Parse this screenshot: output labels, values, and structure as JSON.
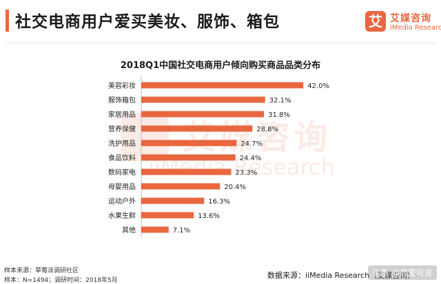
{
  "header": {
    "title": "社交电商用户爱买美妆、服饰、箱包",
    "logo_mark": "艾",
    "logo_cn": "艾媒咨询",
    "logo_en": "iMedia Research",
    "accent_color": "#e8673f"
  },
  "watermark": {
    "cn": "艾媒咨询",
    "en": "iiMedia Research"
  },
  "chart_data": {
    "type": "bar",
    "orientation": "horizontal",
    "title": "2018Q1中国社交电商用户倾向购买商品品类分布",
    "categories": [
      "美容彩妆",
      "服饰箱包",
      "家居用品",
      "营养保健",
      "洗护用品",
      "食品饮料",
      "数码家电",
      "母婴用品",
      "运动户外",
      "水果生鲜",
      "其他"
    ],
    "values": [
      42.0,
      32.1,
      31.8,
      28.8,
      24.7,
      24.4,
      23.3,
      20.4,
      16.3,
      13.6,
      7.1
    ],
    "value_labels": [
      "42.0%",
      "32.1%",
      "31.8%",
      "28.8%",
      "24.7%",
      "24.4%",
      "23.3%",
      "20.4%",
      "16.3%",
      "13.6%",
      "7.1%"
    ],
    "unit": "%",
    "bar_color": "#e8673f",
    "xlabel": "",
    "ylabel": ""
  },
  "footer": {
    "sample_source": "样本来源：草莓派调研社区",
    "sample_info": "样本：N=1494；调研时间：2018年5月",
    "data_source": "数据来源：iiMedia Research（艾媒咨询）",
    "corner_watermark": "头条 @恋爱可言"
  }
}
